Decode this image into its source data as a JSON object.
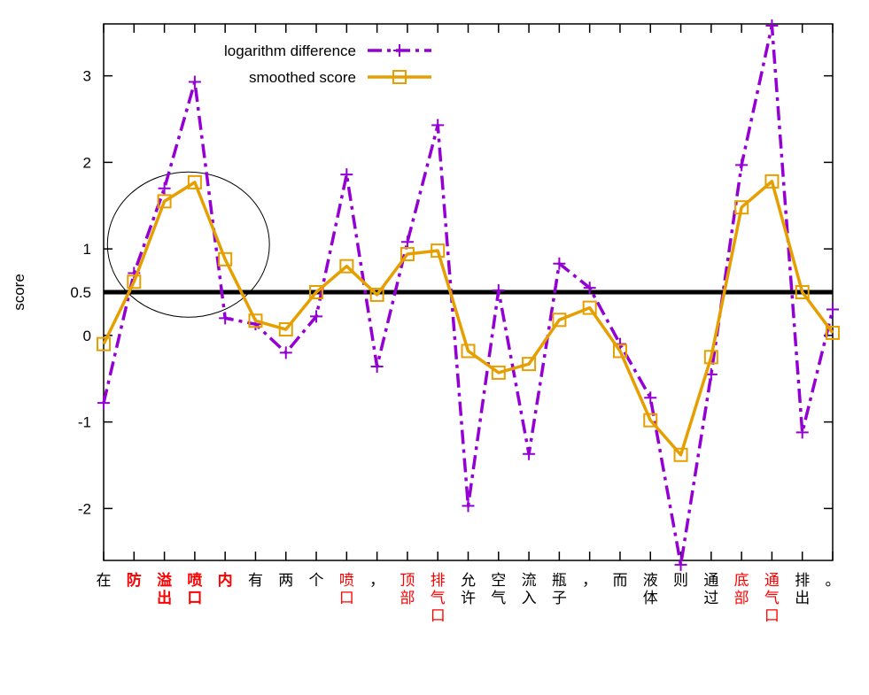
{
  "chart_data": {
    "type": "line",
    "ylabel": "score",
    "ylim": [
      -2.6,
      3.6
    ],
    "yticks": [
      -2,
      -1,
      0,
      0.5,
      1,
      2,
      3
    ],
    "categories": [
      {
        "text": "在",
        "color": "#000000",
        "bold": false
      },
      {
        "text": "防",
        "color": "#ff0000",
        "bold": true
      },
      {
        "text": "溢出",
        "color": "#ff0000",
        "bold": true
      },
      {
        "text": "喷口",
        "color": "#ff0000",
        "bold": true
      },
      {
        "text": "内",
        "color": "#ff0000",
        "bold": true
      },
      {
        "text": "有",
        "color": "#000000",
        "bold": false
      },
      {
        "text": "两",
        "color": "#000000",
        "bold": false
      },
      {
        "text": "个",
        "color": "#000000",
        "bold": false
      },
      {
        "text": "喷口",
        "color": "#ff0000",
        "bold": false
      },
      {
        "text": "，",
        "color": "#000000",
        "bold": false
      },
      {
        "text": "顶部",
        "color": "#ff0000",
        "bold": false
      },
      {
        "text": "排气口",
        "color": "#ff0000",
        "bold": false
      },
      {
        "text": "允许",
        "color": "#000000",
        "bold": false
      },
      {
        "text": "空气",
        "color": "#000000",
        "bold": false
      },
      {
        "text": "流入",
        "color": "#000000",
        "bold": false
      },
      {
        "text": "瓶子",
        "color": "#000000",
        "bold": false
      },
      {
        "text": "，",
        "color": "#000000",
        "bold": false
      },
      {
        "text": "而",
        "color": "#000000",
        "bold": false
      },
      {
        "text": "液体",
        "color": "#000000",
        "bold": false
      },
      {
        "text": "则",
        "color": "#000000",
        "bold": false
      },
      {
        "text": "通过",
        "color": "#000000",
        "bold": false
      },
      {
        "text": "底部",
        "color": "#ff0000",
        "bold": false
      },
      {
        "text": "通气口",
        "color": "#ff0000",
        "bold": false
      },
      {
        "text": "排出",
        "color": "#000000",
        "bold": false
      },
      {
        "text": "。",
        "color": "#000000",
        "bold": false
      }
    ],
    "series": [
      {
        "name": "logarithm difference",
        "color": "#9400d3",
        "style": "dash-dot",
        "marker": "plus",
        "values": [
          -0.78,
          0.72,
          1.7,
          2.93,
          0.2,
          0.13,
          -0.2,
          0.22,
          1.86,
          -0.36,
          1.08,
          2.43,
          -1.97,
          0.52,
          -1.37,
          0.83,
          0.55,
          -0.1,
          -0.72,
          -2.65,
          -0.45,
          1.97,
          3.58,
          -1.12,
          0.3
        ]
      },
      {
        "name": "smoothed score",
        "color": "#e69f00",
        "style": "solid",
        "marker": "square",
        "values": [
          -0.1,
          0.62,
          1.55,
          1.77,
          0.88,
          0.17,
          0.07,
          0.5,
          0.8,
          0.47,
          0.94,
          0.98,
          -0.18,
          -0.43,
          -0.33,
          0.18,
          0.32,
          -0.18,
          -0.98,
          -1.38,
          -0.25,
          1.48,
          1.78,
          0.5,
          0.03
        ]
      }
    ],
    "reference_line": {
      "y": 0.5,
      "color": "#000000"
    },
    "annotation": {
      "shape": "ellipse",
      "around_categories": [
        1,
        4
      ]
    },
    "legend": {
      "position": "top-left"
    },
    "grid": false
  }
}
